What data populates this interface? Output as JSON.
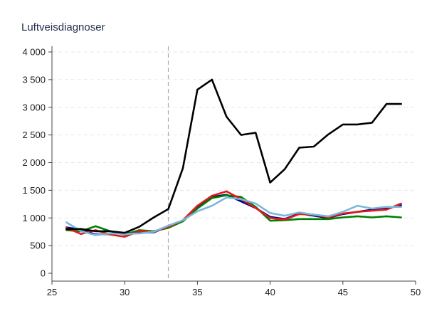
{
  "chart_data": {
    "type": "line",
    "title": "Luftveisdiagnoser",
    "xlim": [
      25,
      50
    ],
    "ylim": [
      0,
      4000
    ],
    "x_ticks": [
      25,
      30,
      35,
      40,
      45,
      50
    ],
    "y_ticks": [
      0,
      500,
      1000,
      1500,
      2000,
      2500,
      3000,
      3500,
      4000
    ],
    "y_tick_labels": [
      "0",
      "500",
      "1 000",
      "1 500",
      "2 000",
      "2 500",
      "3 000",
      "3 500",
      "4 000"
    ],
    "x_tick_labels": [
      "25",
      "30",
      "35",
      "40",
      "45",
      "50"
    ],
    "reference_line_x": 33,
    "grid": "horizontal dashed",
    "series": [
      {
        "color": "#00008b",
        "x": [
          26,
          27,
          28,
          29,
          30,
          31,
          32,
          33,
          34,
          35,
          36,
          37,
          38,
          39,
          40,
          41,
          42,
          43,
          44,
          45,
          46,
          47,
          48,
          49
        ],
        "values": [
          830,
          790,
          700,
          710,
          730,
          730,
          740,
          850,
          940,
          1200,
          1380,
          1420,
          1300,
          1180,
          1020,
          980,
          1080,
          1040,
          1000,
          1070,
          1110,
          1150,
          1170,
          1230
        ]
      },
      {
        "color": "#008000",
        "x": [
          26,
          27,
          28,
          29,
          30,
          31,
          32,
          33,
          34,
          35,
          36,
          37,
          38,
          39,
          40,
          41,
          42,
          43,
          44,
          45,
          46,
          47,
          48,
          49
        ],
        "values": [
          780,
          760,
          850,
          760,
          700,
          780,
          760,
          820,
          940,
          1170,
          1360,
          1410,
          1380,
          1200,
          950,
          960,
          980,
          980,
          980,
          1010,
          1030,
          1010,
          1030,
          1010
        ]
      },
      {
        "color": "#e31a1c",
        "x": [
          26,
          27,
          28,
          29,
          30,
          31,
          32,
          33,
          34,
          35,
          36,
          37,
          38,
          39,
          40,
          41,
          42,
          43,
          44,
          45,
          46,
          47,
          48,
          49
        ],
        "values": [
          820,
          710,
          780,
          700,
          660,
          760,
          750,
          840,
          960,
          1220,
          1400,
          1480,
          1340,
          1180,
          1000,
          970,
          1070,
          1060,
          1010,
          1080,
          1110,
          1130,
          1150,
          1260
        ]
      },
      {
        "color": "#7ab8d9",
        "x": [
          26,
          27,
          28,
          29,
          30,
          31,
          32,
          33,
          34,
          35,
          36,
          37,
          38,
          39,
          40,
          41,
          42,
          43,
          44,
          45,
          46,
          47,
          48,
          49
        ],
        "values": [
          920,
          760,
          690,
          720,
          710,
          720,
          750,
          860,
          960,
          1120,
          1220,
          1370,
          1340,
          1260,
          1090,
          1040,
          1100,
          1060,
          1030,
          1110,
          1220,
          1170,
          1200,
          1200
        ]
      },
      {
        "color": "#000000",
        "x": [
          26,
          27,
          28,
          29,
          30,
          31,
          32,
          33,
          34,
          35,
          36,
          37,
          38,
          39,
          40,
          41,
          42,
          43,
          44,
          45,
          46,
          47,
          48,
          49
        ],
        "values": [
          800,
          800,
          760,
          760,
          730,
          840,
          1010,
          1160,
          1900,
          3320,
          3500,
          2830,
          2500,
          2540,
          1640,
          1880,
          2270,
          2290,
          2510,
          2690,
          2690,
          2720,
          3060,
          3060
        ]
      }
    ]
  }
}
